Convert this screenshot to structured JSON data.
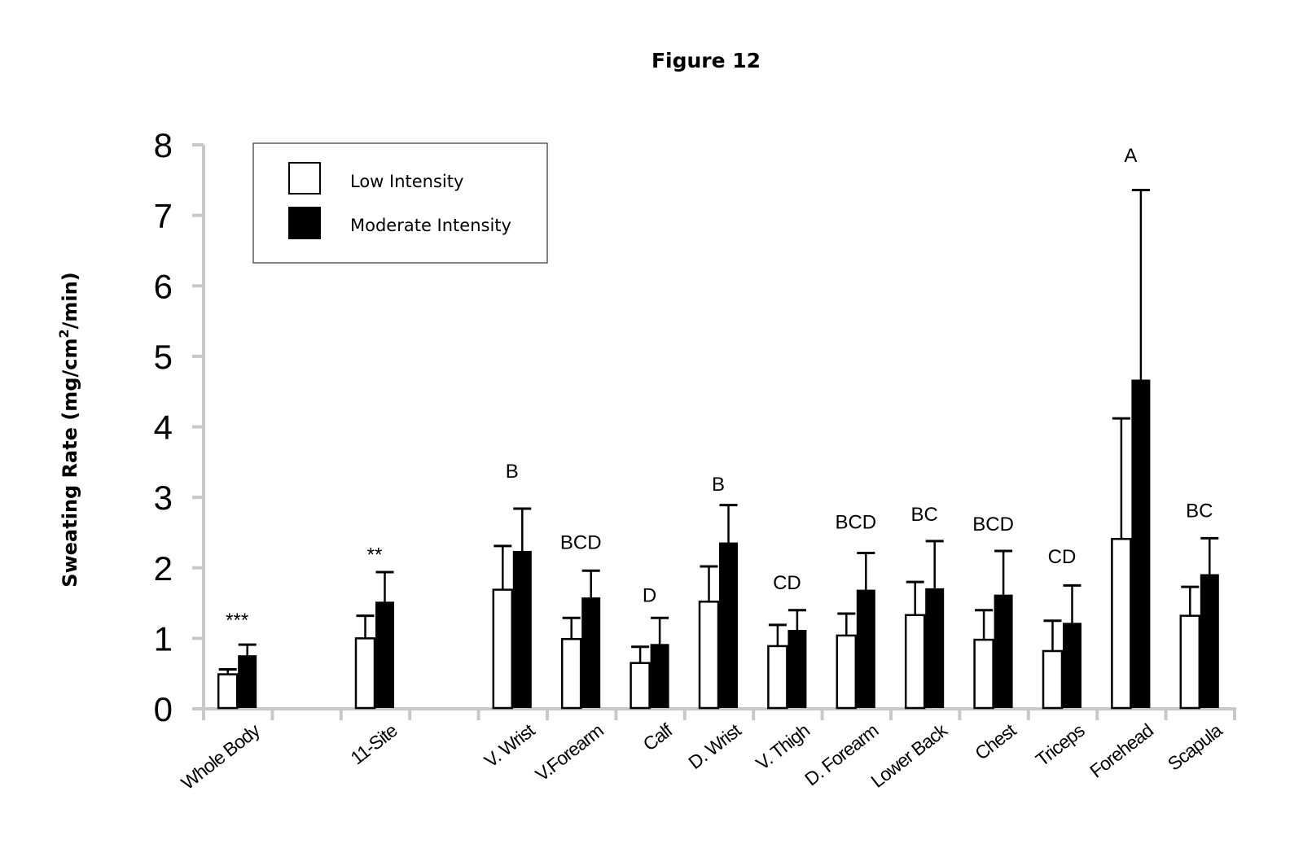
{
  "chart_data": {
    "type": "bar",
    "title": "Figure 12",
    "xlabel": "",
    "ylabel": "Sweating Rate (mg/cm²/min)",
    "ylabel_parts": {
      "main": "Sweating Rate (mg/cm",
      "sup": "2",
      "tail": "/min)"
    },
    "ylim": [
      0,
      8
    ],
    "yticks": [
      "0",
      "1",
      "2",
      "3",
      "4",
      "5",
      "6",
      "7",
      "8"
    ],
    "grid": false,
    "legend_position": "top-left",
    "categories": [
      "Whole Body",
      "",
      "11-Site",
      "",
      "V. Wrist",
      "V.Forearm",
      "Calf",
      "D. Wrist",
      "V. Thigh",
      "D. Forearm",
      "Lower Back",
      "Chest",
      "Triceps",
      "Forehead",
      "Scapula"
    ],
    "series": [
      {
        "name": "Low Intensity",
        "fill": "#ffffff",
        "values": [
          0.49,
          null,
          1.0,
          null,
          1.69,
          0.99,
          0.65,
          1.52,
          0.89,
          1.04,
          1.33,
          0.98,
          0.82,
          2.41,
          1.32
        ],
        "error_upper": [
          0.56,
          null,
          1.32,
          null,
          2.31,
          1.29,
          0.88,
          2.02,
          1.19,
          1.35,
          1.8,
          1.4,
          1.25,
          4.12,
          1.73
        ]
      },
      {
        "name": "Moderate Intensity",
        "fill": "#000000",
        "values": [
          0.76,
          null,
          1.52,
          null,
          2.24,
          1.58,
          0.92,
          2.36,
          1.12,
          1.69,
          1.71,
          1.62,
          1.22,
          4.67,
          1.91
        ],
        "error_upper": [
          0.91,
          null,
          1.94,
          null,
          2.84,
          1.96,
          1.29,
          2.89,
          1.4,
          2.21,
          2.38,
          2.24,
          1.75,
          7.36,
          2.42
        ]
      }
    ],
    "annotations": [
      {
        "category_index": 0,
        "text": "***",
        "y": 1.27
      },
      {
        "category_index": 2,
        "text": "**",
        "y": 2.2
      },
      {
        "category_index": 4,
        "text": "B",
        "y": 3.38
      },
      {
        "category_index": 5,
        "text": "BCD",
        "y": 2.37
      },
      {
        "category_index": 6,
        "text": "D",
        "y": 1.62
      },
      {
        "category_index": 7,
        "text": "B",
        "y": 3.2
      },
      {
        "category_index": 8,
        "text": "CD",
        "y": 1.8
      },
      {
        "category_index": 9,
        "text": "BCD",
        "y": 2.66
      },
      {
        "category_index": 10,
        "text": "BC",
        "y": 2.77
      },
      {
        "category_index": 11,
        "text": "BCD",
        "y": 2.63
      },
      {
        "category_index": 12,
        "text": "CD",
        "y": 2.17
      },
      {
        "category_index": 13,
        "text": "A",
        "y": 7.86
      },
      {
        "category_index": 14,
        "text": "BC",
        "y": 2.82
      }
    ],
    "axis_color": "#c8c8c8"
  }
}
